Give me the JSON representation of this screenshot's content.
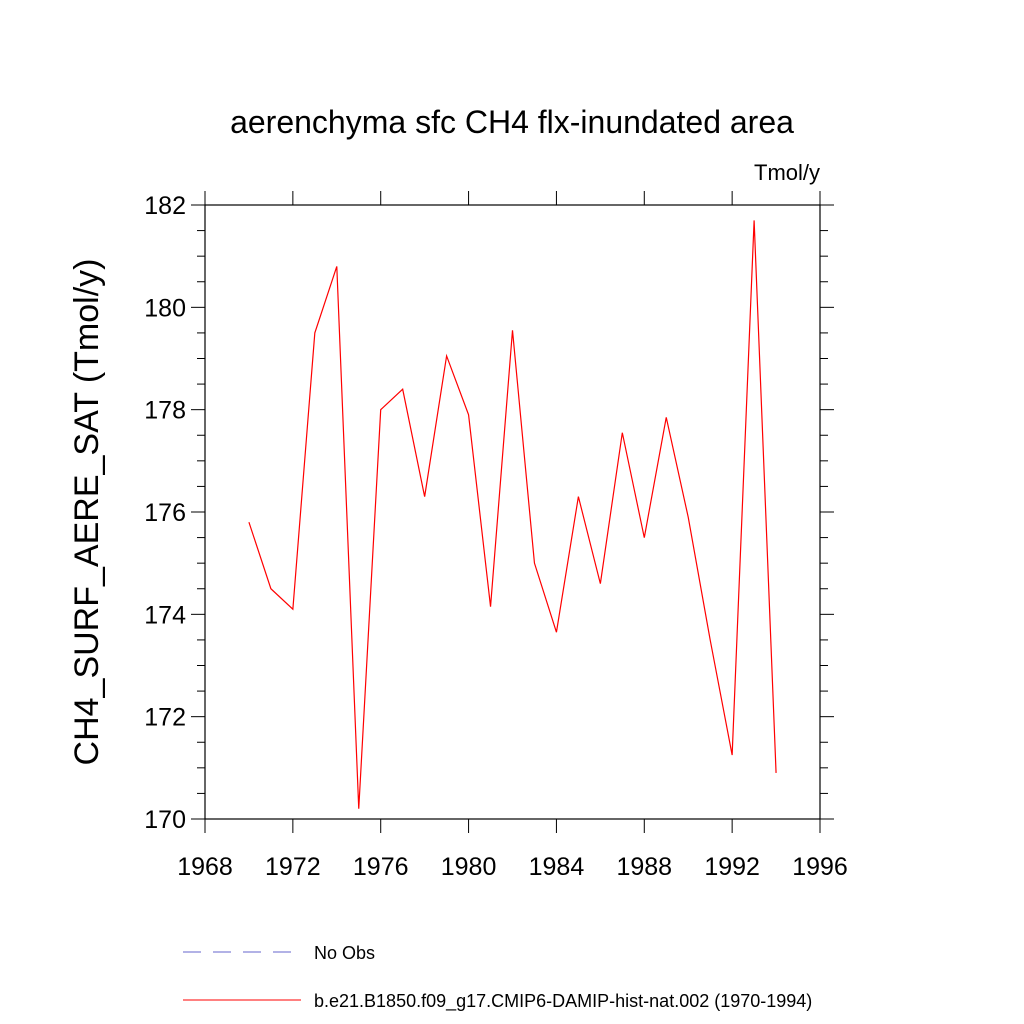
{
  "chart_data": {
    "type": "line",
    "title": "aerenchyma sfc CH4 flx-inundated area",
    "units_label": "Tmol/y",
    "ylabel": "CH4_SURF_AERE_SAT  (Tmol/y)",
    "xlabel": "",
    "xlim": [
      1968,
      1996
    ],
    "ylim": [
      170,
      182
    ],
    "x_ticks": [
      1968,
      1972,
      1976,
      1980,
      1984,
      1988,
      1992,
      1996
    ],
    "x_tick_labels": [
      "1968",
      "1972",
      "1976",
      "1980",
      "1984",
      "1988",
      "1992",
      "1996"
    ],
    "y_ticks": [
      170,
      172,
      174,
      176,
      178,
      180,
      182
    ],
    "y_tick_labels": [
      "170",
      "172",
      "174",
      "176",
      "178",
      "180",
      "182"
    ],
    "grid": false,
    "legend_position": "bottom",
    "series": [
      {
        "name": "b.e21.B1850.f09_g17.CMIP6-DAMIP-hist-nat.002 (1970-1994)",
        "color": "#ff0000",
        "style": "solid",
        "x": [
          1970,
          1971,
          1972,
          1973,
          1974,
          1975,
          1976,
          1977,
          1978,
          1979,
          1980,
          1981,
          1982,
          1983,
          1984,
          1985,
          1986,
          1987,
          1988,
          1989,
          1990,
          1991,
          1992,
          1993,
          1994
        ],
        "y": [
          175.8,
          174.5,
          174.1,
          179.5,
          180.8,
          170.2,
          178.0,
          178.4,
          176.3,
          179.05,
          177.9,
          174.15,
          179.55,
          175.0,
          173.65,
          176.3,
          174.6,
          177.55,
          175.5,
          177.85,
          175.9,
          173.5,
          171.25,
          181.7,
          170.9
        ]
      }
    ],
    "legend": [
      {
        "label": "No Obs",
        "color": "#6666cc",
        "style": "dashed"
      },
      {
        "label": "b.e21.B1850.f09_g17.CMIP6-DAMIP-hist-nat.002 (1970-1994)",
        "color": "#ff0000",
        "style": "solid"
      }
    ]
  }
}
